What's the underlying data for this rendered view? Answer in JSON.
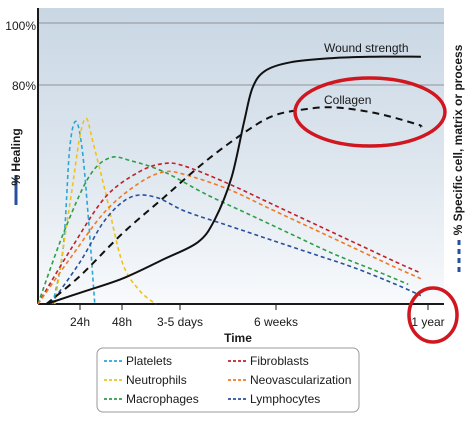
{
  "chart_data": {
    "type": "line",
    "title": "",
    "xlabel": "Time",
    "ylabel_left": "% Healing",
    "ylabel_right": "% Specific cell, matrix or process",
    "x_tick_labels": [
      "24h",
      "48h",
      "3-5 days",
      "6 weeks",
      "1 year"
    ],
    "y_tick_labels": [
      "80%",
      "100%"
    ],
    "ylim": [
      0,
      100
    ],
    "grid": "horizontal at 80% and 100%",
    "legend": "bottom",
    "series": [
      {
        "name": "Platelets",
        "color": "#2aa7d6",
        "dash": "dashed",
        "axis": "right",
        "points": [
          [
            0.35,
            0
          ],
          [
            0.6,
            20
          ],
          [
            0.75,
            55
          ],
          [
            0.9,
            65
          ],
          [
            1.05,
            55
          ],
          [
            1.2,
            30
          ],
          [
            1.35,
            0
          ]
        ]
      },
      {
        "name": "Neutrophils",
        "color": "#f0c21b",
        "dash": "dashed",
        "axis": "right",
        "points": [
          [
            0.4,
            0
          ],
          [
            0.8,
            40
          ],
          [
            1.0,
            60
          ],
          [
            1.15,
            66
          ],
          [
            1.3,
            58
          ],
          [
            1.6,
            40
          ],
          [
            2.0,
            15
          ],
          [
            2.4,
            5
          ],
          [
            2.8,
            0
          ]
        ]
      },
      {
        "name": "Macrophages",
        "color": "#2e9e48",
        "dash": "dashed",
        "axis": "right",
        "points": [
          [
            0,
            0
          ],
          [
            0.6,
            25
          ],
          [
            1.2,
            45
          ],
          [
            1.7,
            52
          ],
          [
            2.2,
            51
          ],
          [
            3.0,
            47
          ],
          [
            4.0,
            39
          ],
          [
            5.0,
            32
          ],
          [
            6.0,
            25
          ],
          [
            7.0,
            18
          ],
          [
            8.0,
            12
          ],
          [
            8.8,
            7
          ]
        ]
      },
      {
        "name": "Fibroblasts",
        "color": "#c0202a",
        "dash": "dashed",
        "axis": "right",
        "points": [
          [
            0,
            0
          ],
          [
            0.8,
            20
          ],
          [
            1.6,
            38
          ],
          [
            2.4,
            47
          ],
          [
            3.0,
            50
          ],
          [
            3.5,
            49
          ],
          [
            4.5,
            43
          ],
          [
            5.5,
            36
          ],
          [
            6.5,
            29
          ],
          [
            7.5,
            22
          ],
          [
            8.5,
            15
          ],
          [
            9.1,
            11
          ]
        ]
      },
      {
        "name": "Neovascularization",
        "color": "#f07a24",
        "dash": "dashed",
        "axis": "right",
        "points": [
          [
            0,
            0
          ],
          [
            0.8,
            17
          ],
          [
            1.6,
            33
          ],
          [
            2.4,
            43
          ],
          [
            3.0,
            47
          ],
          [
            3.5,
            46
          ],
          [
            4.5,
            41
          ],
          [
            5.5,
            34
          ],
          [
            6.5,
            27
          ],
          [
            7.5,
            20
          ],
          [
            8.5,
            13
          ],
          [
            9.1,
            9
          ]
        ]
      },
      {
        "name": "Lymphocytes",
        "color": "#27509e",
        "dash": "dashed",
        "axis": "right",
        "points": [
          [
            0.3,
            0
          ],
          [
            1.0,
            15
          ],
          [
            1.6,
            30
          ],
          [
            2.2,
            38
          ],
          [
            2.8,
            38
          ],
          [
            3.5,
            33
          ],
          [
            4.5,
            28
          ],
          [
            5.5,
            23
          ],
          [
            6.5,
            18
          ],
          [
            7.5,
            13
          ],
          [
            8.5,
            7
          ],
          [
            9.1,
            3
          ]
        ]
      },
      {
        "name": "Collagen",
        "color": "#111111",
        "dash": "dashed",
        "axis": "right",
        "points": [
          [
            0.2,
            0
          ],
          [
            1.0,
            10
          ],
          [
            2.0,
            25
          ],
          [
            3.0,
            38
          ],
          [
            4.0,
            51
          ],
          [
            5.0,
            62
          ],
          [
            5.6,
            67
          ],
          [
            6.2,
            69
          ],
          [
            7.0,
            70
          ],
          [
            8.0,
            68
          ],
          [
            9.0,
            64
          ],
          [
            9.1,
            63
          ]
        ]
      },
      {
        "name": "Wound strength",
        "color": "#111111",
        "dash": "solid",
        "axis": "left",
        "points": [
          [
            0.2,
            0
          ],
          [
            1.0,
            4
          ],
          [
            2.0,
            9
          ],
          [
            3.0,
            16
          ],
          [
            3.8,
            22
          ],
          [
            4.2,
            30
          ],
          [
            4.6,
            45
          ],
          [
            4.9,
            65
          ],
          [
            5.1,
            77
          ],
          [
            5.4,
            83
          ],
          [
            6.0,
            86
          ],
          [
            7.0,
            87.5
          ],
          [
            8.0,
            88
          ],
          [
            9.1,
            88
          ]
        ]
      }
    ],
    "annotations": [
      {
        "text": "Wound strength",
        "series": "Wound strength"
      },
      {
        "text": "Collagen",
        "series": "Collagen",
        "highlight": "red ellipse"
      },
      {
        "text": "1 year",
        "highlight": "red ellipse"
      }
    ],
    "highlight_color": "#d0161e"
  }
}
